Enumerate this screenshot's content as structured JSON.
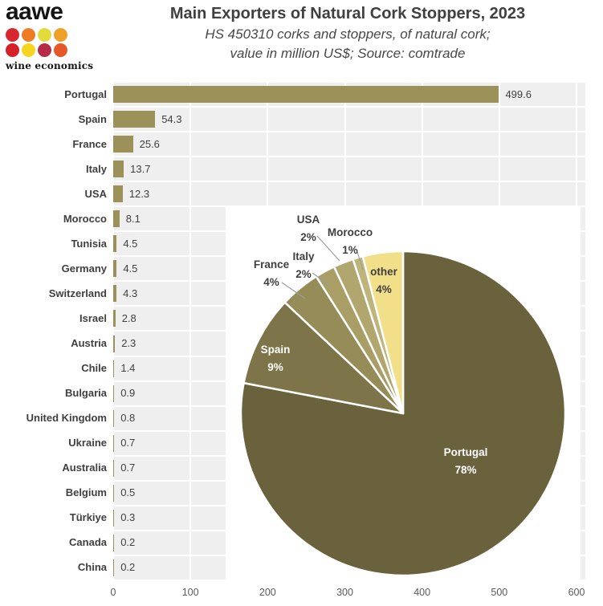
{
  "logo": {
    "brand": "aawe",
    "tagline": "wine economics",
    "dot_colors": [
      "#d6282e",
      "#ee7c24",
      "#e3da3c",
      "#efa02a",
      "#d42027",
      "#f6d51f",
      "#b62b45",
      "#e55629"
    ]
  },
  "header": {
    "title": "Main Exporters of Natural Cork Stoppers, 2023",
    "subtitle_line1": "HS 450310 corks and stoppers, of natural cork;",
    "subtitle_line2": "value in million US$; Source: comtrade"
  },
  "chart_data": [
    {
      "type": "bar",
      "orientation": "horizontal",
      "categories": [
        "Portugal",
        "Spain",
        "France",
        "Italy",
        "USA",
        "Morocco",
        "Tunisia",
        "Germany",
        "Switzerland",
        "Israel",
        "Austria",
        "Chile",
        "Bulgaria",
        "United Kingdom",
        "Ukraine",
        "Australia",
        "Belgium",
        "Türkiye",
        "Canada",
        "China"
      ],
      "values": [
        499.6,
        54.3,
        25.6,
        13.7,
        12.3,
        8.1,
        4.5,
        4.5,
        4.3,
        2.8,
        2.3,
        1.4,
        0.9,
        0.8,
        0.7,
        0.7,
        0.5,
        0.3,
        0.2,
        0.2
      ],
      "xlim": [
        0,
        600
      ],
      "x_ticks": [
        0,
        100,
        200,
        300,
        400,
        500,
        600
      ],
      "grid": true,
      "value_labels": true,
      "bar_color": "#9c9158",
      "plot_background": "#efefef",
      "gridline_color": "#ffffff"
    },
    {
      "type": "pie",
      "labels": [
        "Portugal",
        "Spain",
        "France",
        "Italy",
        "USA",
        "Morocco",
        "other"
      ],
      "values": [
        78,
        9,
        4,
        2,
        2,
        1,
        4
      ],
      "unit": "%",
      "direction": "clockwise",
      "start_angle_deg": 0,
      "colors": [
        "#6a623d",
        "#7e744a",
        "#968c58",
        "#a89e66",
        "#b1a76e",
        "#bfb57c",
        "#f2df8a"
      ],
      "inside_labels": [
        "Portugal",
        "Spain",
        "other"
      ],
      "inside_label_color": "#ffffff",
      "other_inside_label_color": "#3f3f3f",
      "outside_label_color": "#3f3f3f",
      "leader_line_color": "#9c9c9c"
    }
  ]
}
